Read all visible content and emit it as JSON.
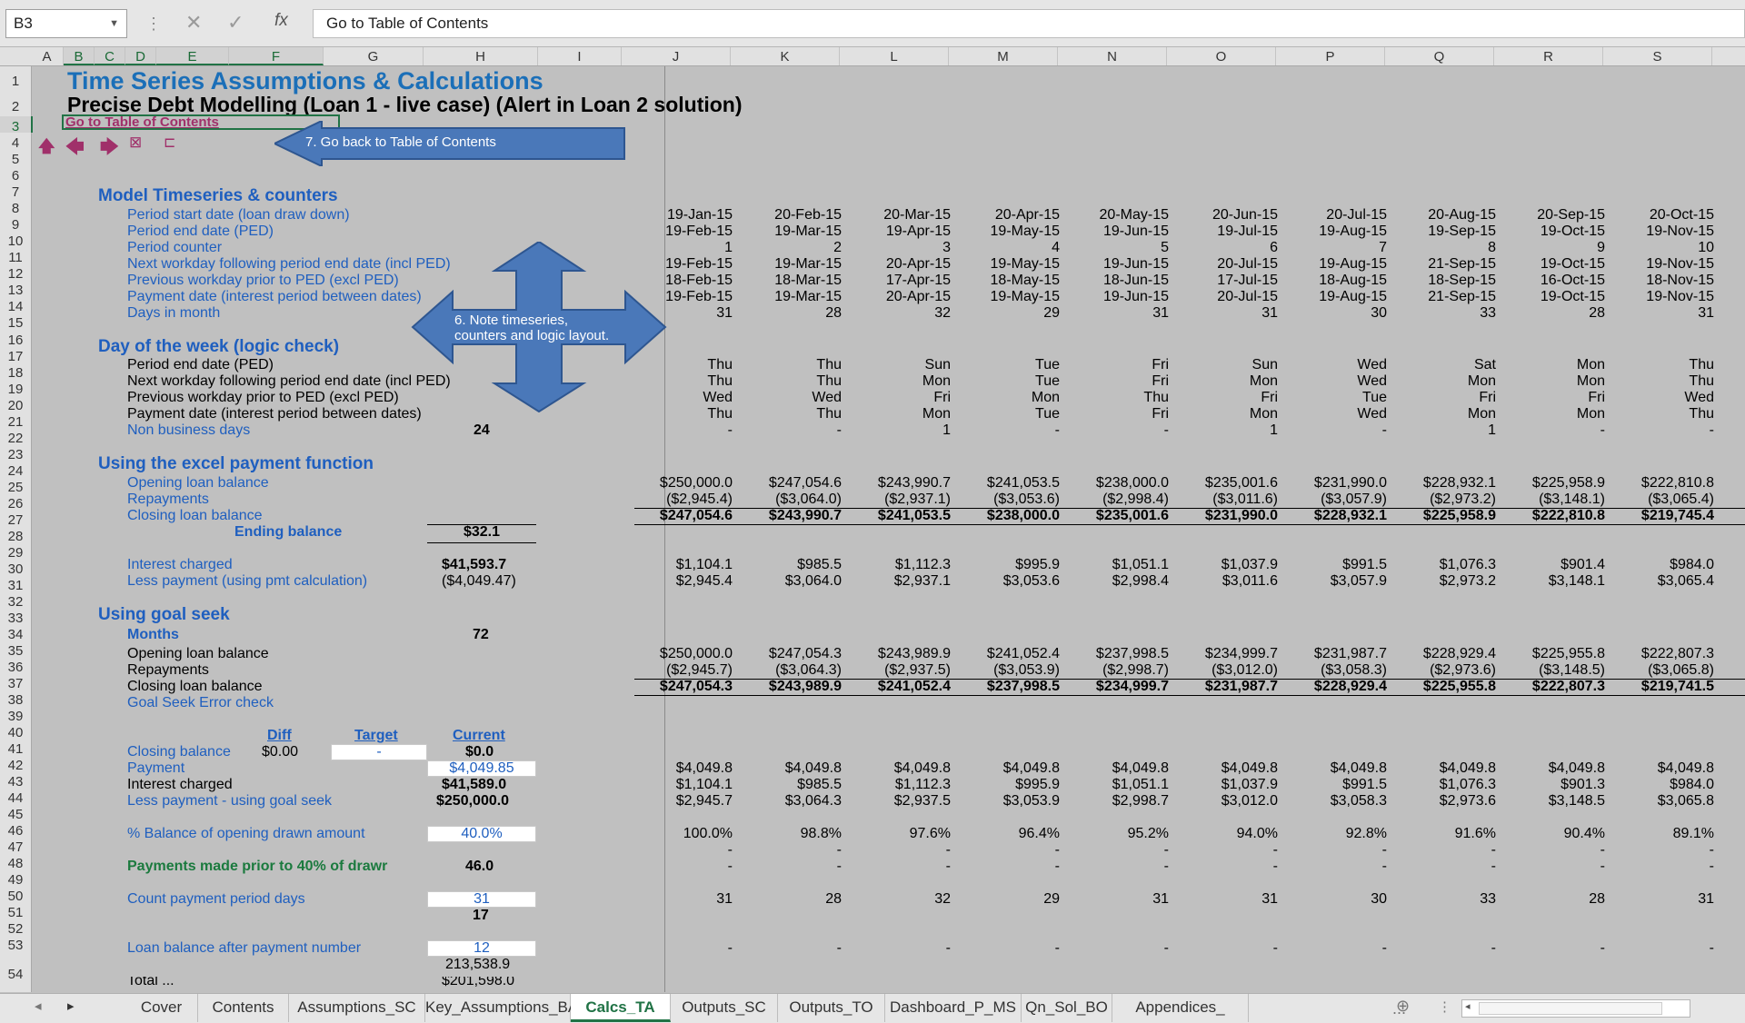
{
  "formula_bar": {
    "name_box": "B3",
    "fx": "fx",
    "content": "Go to Table of Contents"
  },
  "columns": [
    "A",
    "B",
    "C",
    "D",
    "E",
    "F",
    "G",
    "H",
    "I",
    "J",
    "K",
    "L",
    "M",
    "N",
    "O",
    "P",
    "Q",
    "R",
    "S"
  ],
  "rows": [
    "1",
    "2",
    "3",
    "4",
    "5",
    "6",
    "7",
    "8",
    "9",
    "10",
    "11",
    "12",
    "13",
    "14",
    "15",
    "16",
    "17",
    "18",
    "19",
    "20",
    "21",
    "22",
    "23",
    "24",
    "25",
    "26",
    "27",
    "28",
    "29",
    "30",
    "31",
    "32",
    "33",
    "34",
    "35",
    "36",
    "37",
    "38",
    "39",
    "40",
    "41",
    "42",
    "43",
    "44",
    "45",
    "46",
    "47",
    "48",
    "49",
    "50",
    "51",
    "52",
    "53",
    "54"
  ],
  "title": "Time Series Assumptions & Calculations",
  "subtitle": "Precise Debt Modelling (Loan 1 - live case) (Alert in Loan 2 solution)",
  "toc_link": "Go to Table of Contents",
  "callouts": {
    "back": "7. Go back to Table of Contents",
    "note_l1": "6. Note timeseries,",
    "note_l2": "counters and logic layout."
  },
  "sections": {
    "timeseries": "Model Timeseries & counters",
    "dow": "Day of the week (logic check)",
    "pmt": "Using the excel payment function",
    "goal": "Using goal seek"
  },
  "labels": {
    "r8": "Period start date (loan draw down)",
    "r9": "Period end date (PED)",
    "r10": "Period counter",
    "r11": "Next workday following period end date (incl PED)",
    "r12": "Previous workday prior to PED (excl PED)",
    "r13": "Payment date (interest period between dates)",
    "r14": "Days in month",
    "r17": "Period end date (PED)",
    "r18": "Next workday following period end date (incl PED)",
    "r19": "Previous workday prior to PED (excl PED)",
    "r20": "Payment date (interest period between dates)",
    "r21": "Non business days",
    "r24": "Opening loan balance",
    "r25": "Repayments",
    "r26": "Closing loan balance",
    "r27": "Ending balance",
    "r29": "Interest charged",
    "r30": "Less payment (using pmt calculation)",
    "r33": "Months",
    "r34": "Opening loan balance",
    "r35": "Repayments",
    "r36": "Closing loan balance",
    "r37": "Goal Seek Error check",
    "diff": "Diff",
    "target": "Target",
    "current": "Current",
    "r40": "Closing balance",
    "r41": "Payment",
    "r42": "Interest charged",
    "r43": "Less payment - using goal seek",
    "r45": "% Balance of opening drawn amount",
    "r47": "Payments made prior to 40% of drawr",
    "r49": "Count payment period days",
    "r52": "Loan balance after payment number",
    "r54": "Total ..."
  },
  "values_h": {
    "r21": "24",
    "r27": "$32.1",
    "r29": "$41,593.7",
    "r30": "($4,049.47)",
    "r33": "72",
    "r40_diff": "$0.00",
    "r40_target": "-",
    "r40": "$0.0",
    "r41": "$4,049.85",
    "r42": "$41,589.0",
    "r43": "$250,000.0",
    "r45": "40.0%",
    "r47": "46.0",
    "r49": "31",
    "r50": "17",
    "r52": "12",
    "r53": "213,538.9",
    "r54": "$201,598.0"
  },
  "series": {
    "r8": [
      "19-Jan-15",
      "20-Feb-15",
      "20-Mar-15",
      "20-Apr-15",
      "20-May-15",
      "20-Jun-15",
      "20-Jul-15",
      "20-Aug-15",
      "20-Sep-15",
      "20-Oct-15"
    ],
    "r9": [
      "19-Feb-15",
      "19-Mar-15",
      "19-Apr-15",
      "19-May-15",
      "19-Jun-15",
      "19-Jul-15",
      "19-Aug-15",
      "19-Sep-15",
      "19-Oct-15",
      "19-Nov-15"
    ],
    "r10": [
      "1",
      "2",
      "3",
      "4",
      "5",
      "6",
      "7",
      "8",
      "9",
      "10"
    ],
    "r11": [
      "19-Feb-15",
      "19-Mar-15",
      "20-Apr-15",
      "19-May-15",
      "19-Jun-15",
      "20-Jul-15",
      "19-Aug-15",
      "21-Sep-15",
      "19-Oct-15",
      "19-Nov-15"
    ],
    "r12": [
      "18-Feb-15",
      "18-Mar-15",
      "17-Apr-15",
      "18-May-15",
      "18-Jun-15",
      "17-Jul-15",
      "18-Aug-15",
      "18-Sep-15",
      "16-Oct-15",
      "18-Nov-15"
    ],
    "r13": [
      "19-Feb-15",
      "19-Mar-15",
      "20-Apr-15",
      "19-May-15",
      "19-Jun-15",
      "20-Jul-15",
      "19-Aug-15",
      "21-Sep-15",
      "19-Oct-15",
      "19-Nov-15"
    ],
    "r14": [
      "31",
      "28",
      "32",
      "29",
      "31",
      "31",
      "30",
      "33",
      "28",
      "31"
    ],
    "r17": [
      "Thu",
      "Thu",
      "Sun",
      "Tue",
      "Fri",
      "Sun",
      "Wed",
      "Sat",
      "Mon",
      "Thu"
    ],
    "r18": [
      "Thu",
      "Thu",
      "Mon",
      "Tue",
      "Fri",
      "Mon",
      "Wed",
      "Mon",
      "Mon",
      "Thu"
    ],
    "r19": [
      "Wed",
      "Wed",
      "Fri",
      "Mon",
      "Thu",
      "Fri",
      "Tue",
      "Fri",
      "Fri",
      "Wed"
    ],
    "r20": [
      "Thu",
      "Thu",
      "Mon",
      "Tue",
      "Fri",
      "Mon",
      "Wed",
      "Mon",
      "Mon",
      "Thu"
    ],
    "r21": [
      "-",
      "-",
      "1",
      "-",
      "-",
      "1",
      "-",
      "1",
      "-",
      "-"
    ],
    "r24": [
      "$250,000.0",
      "$247,054.6",
      "$243,990.7",
      "$241,053.5",
      "$238,000.0",
      "$235,001.6",
      "$231,990.0",
      "$228,932.1",
      "$225,958.9",
      "$222,810.8"
    ],
    "r25": [
      "($2,945.4)",
      "($3,064.0)",
      "($2,937.1)",
      "($3,053.6)",
      "($2,998.4)",
      "($3,011.6)",
      "($3,057.9)",
      "($2,973.2)",
      "($3,148.1)",
      "($3,065.4)"
    ],
    "r26": [
      "$247,054.6",
      "$243,990.7",
      "$241,053.5",
      "$238,000.0",
      "$235,001.6",
      "$231,990.0",
      "$228,932.1",
      "$225,958.9",
      "$222,810.8",
      "$219,745.4"
    ],
    "r29": [
      "$1,104.1",
      "$985.5",
      "$1,112.3",
      "$995.9",
      "$1,051.1",
      "$1,037.9",
      "$991.5",
      "$1,076.3",
      "$901.4",
      "$984.0"
    ],
    "r30": [
      "$2,945.4",
      "$3,064.0",
      "$2,937.1",
      "$3,053.6",
      "$2,998.4",
      "$3,011.6",
      "$3,057.9",
      "$2,973.2",
      "$3,148.1",
      "$3,065.4"
    ],
    "r34": [
      "$250,000.0",
      "$247,054.3",
      "$243,989.9",
      "$241,052.4",
      "$237,998.5",
      "$234,999.7",
      "$231,987.7",
      "$228,929.4",
      "$225,955.8",
      "$222,807.3"
    ],
    "r35": [
      "($2,945.7)",
      "($3,064.3)",
      "($2,937.5)",
      "($3,053.9)",
      "($2,998.7)",
      "($3,012.0)",
      "($3,058.3)",
      "($2,973.6)",
      "($3,148.5)",
      "($3,065.8)"
    ],
    "r36": [
      "$247,054.3",
      "$243,989.9",
      "$241,052.4",
      "$237,998.5",
      "$234,999.7",
      "$231,987.7",
      "$228,929.4",
      "$225,955.8",
      "$222,807.3",
      "$219,741.5"
    ],
    "r41": [
      "$4,049.8",
      "$4,049.8",
      "$4,049.8",
      "$4,049.8",
      "$4,049.8",
      "$4,049.8",
      "$4,049.8",
      "$4,049.8",
      "$4,049.8",
      "$4,049.8"
    ],
    "r42": [
      "$1,104.1",
      "$985.5",
      "$1,112.3",
      "$995.9",
      "$1,051.1",
      "$1,037.9",
      "$991.5",
      "$1,076.3",
      "$901.3",
      "$984.0"
    ],
    "r43": [
      "$2,945.7",
      "$3,064.3",
      "$2,937.5",
      "$3,053.9",
      "$2,998.7",
      "$3,012.0",
      "$3,058.3",
      "$2,973.6",
      "$3,148.5",
      "$3,065.8"
    ],
    "r45": [
      "100.0%",
      "98.8%",
      "97.6%",
      "96.4%",
      "95.2%",
      "94.0%",
      "92.8%",
      "91.6%",
      "90.4%",
      "89.1%"
    ],
    "r46": [
      "-",
      "-",
      "-",
      "-",
      "-",
      "-",
      "-",
      "-",
      "-",
      "-"
    ],
    "r47": [
      "-",
      "-",
      "-",
      "-",
      "-",
      "-",
      "-",
      "-",
      "-",
      "-"
    ],
    "r49": [
      "31",
      "28",
      "32",
      "29",
      "31",
      "31",
      "30",
      "33",
      "28",
      "31"
    ],
    "r52": [
      "-",
      "-",
      "-",
      "-",
      "-",
      "-",
      "-",
      "-",
      "-",
      "-"
    ]
  },
  "tabs": [
    "Cover",
    "Contents",
    "Assumptions_SC",
    "Key_Assumptions_BA",
    "Calcs_TA",
    "Outputs_SC",
    "Outputs_TO",
    "Dashboard_P_MS",
    "Qn_Sol_BO",
    "Appendices_"
  ],
  "active_tab": "Calcs_TA",
  "tab_more": "..."
}
